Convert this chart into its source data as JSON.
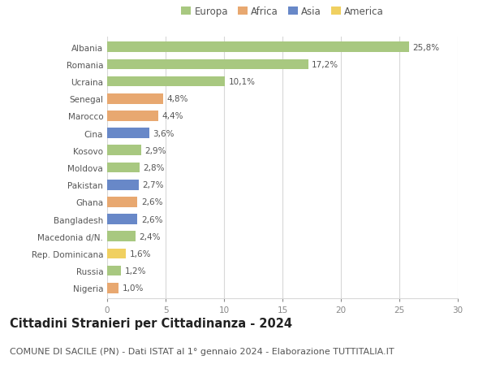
{
  "countries": [
    "Albania",
    "Romania",
    "Ucraina",
    "Senegal",
    "Marocco",
    "Cina",
    "Kosovo",
    "Moldova",
    "Pakistan",
    "Ghana",
    "Bangladesh",
    "Macedonia d/N.",
    "Rep. Dominicana",
    "Russia",
    "Nigeria"
  ],
  "values": [
    25.8,
    17.2,
    10.1,
    4.8,
    4.4,
    3.6,
    2.9,
    2.8,
    2.7,
    2.6,
    2.6,
    2.4,
    1.6,
    1.2,
    1.0
  ],
  "labels": [
    "25,8%",
    "17,2%",
    "10,1%",
    "4,8%",
    "4,4%",
    "3,6%",
    "2,9%",
    "2,8%",
    "2,7%",
    "2,6%",
    "2,6%",
    "2,4%",
    "1,6%",
    "1,2%",
    "1,0%"
  ],
  "continents": [
    "Europa",
    "Europa",
    "Europa",
    "Africa",
    "Africa",
    "Asia",
    "Europa",
    "Europa",
    "Asia",
    "Africa",
    "Asia",
    "Europa",
    "America",
    "Europa",
    "Africa"
  ],
  "colors": {
    "Europa": "#a8c880",
    "Africa": "#e8a870",
    "Asia": "#6888c8",
    "America": "#f0d060"
  },
  "legend_order": [
    "Europa",
    "Africa",
    "Asia",
    "America"
  ],
  "xlim": [
    0,
    30
  ],
  "xticks": [
    0,
    5,
    10,
    15,
    20,
    25,
    30
  ],
  "title": "Cittadini Stranieri per Cittadinanza - 2024",
  "subtitle": "COMUNE DI SACILE (PN) - Dati ISTAT al 1° gennaio 2024 - Elaborazione TUTTITALIA.IT",
  "bg_color": "#ffffff",
  "grid_color": "#d8d8d8",
  "bar_height": 0.6,
  "title_fontsize": 10.5,
  "subtitle_fontsize": 8,
  "label_fontsize": 7.5,
  "tick_fontsize": 7.5,
  "legend_fontsize": 8.5
}
